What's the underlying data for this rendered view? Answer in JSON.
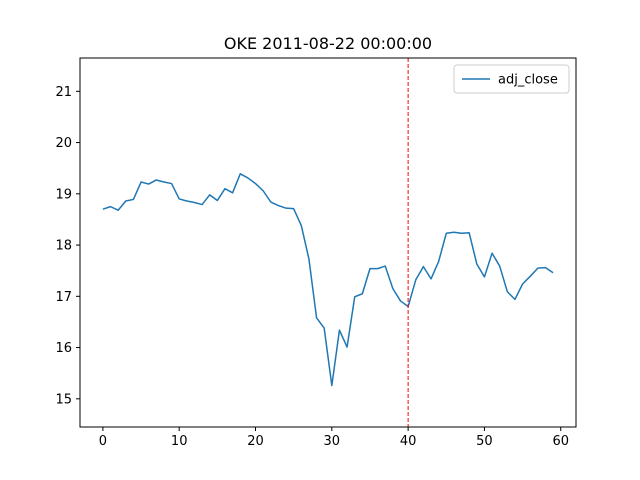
{
  "chart_data": {
    "type": "line",
    "title": "OKE 2011-08-22 00:00:00",
    "xlabel": "",
    "ylabel": "",
    "xlim": [
      -3,
      62
    ],
    "ylim": [
      14.45,
      21.65
    ],
    "xticks": [
      0,
      10,
      20,
      30,
      40,
      50,
      60
    ],
    "yticks": [
      15,
      16,
      17,
      18,
      19,
      20,
      21
    ],
    "grid": false,
    "legend": "top-right",
    "vline": {
      "x": 40,
      "color": "#ff0000",
      "style": "dashed"
    },
    "series": [
      {
        "name": "adj_close",
        "color": "#1f77b4",
        "x": [
          0,
          1,
          2,
          3,
          4,
          5,
          6,
          7,
          8,
          9,
          10,
          11,
          12,
          13,
          14,
          15,
          16,
          17,
          18,
          19,
          20,
          21,
          22,
          23,
          24,
          25,
          26,
          27,
          28,
          29,
          30,
          31,
          32,
          33,
          34,
          35,
          36,
          37,
          38,
          39,
          40,
          41,
          42,
          43,
          44,
          45,
          46,
          47,
          48,
          49,
          50,
          51,
          52,
          53,
          54,
          55,
          56,
          57,
          58,
          59
        ],
        "values": [
          18.7,
          18.75,
          18.68,
          18.86,
          18.89,
          19.23,
          19.19,
          19.27,
          19.23,
          19.2,
          18.9,
          18.86,
          18.83,
          18.79,
          18.98,
          18.87,
          19.1,
          19.02,
          19.39,
          19.31,
          19.2,
          19.06,
          18.84,
          18.77,
          18.72,
          18.71,
          18.38,
          17.73,
          16.58,
          16.38,
          15.26,
          16.34,
          16.01,
          16.99,
          17.05,
          17.54,
          17.54,
          17.59,
          17.15,
          16.91,
          16.8,
          17.32,
          17.58,
          17.34,
          17.68,
          18.23,
          18.25,
          18.23,
          18.24,
          17.63,
          17.38,
          17.84,
          17.59,
          17.09,
          16.94,
          17.24,
          17.39,
          17.55,
          17.56,
          17.46
        ]
      }
    ]
  }
}
